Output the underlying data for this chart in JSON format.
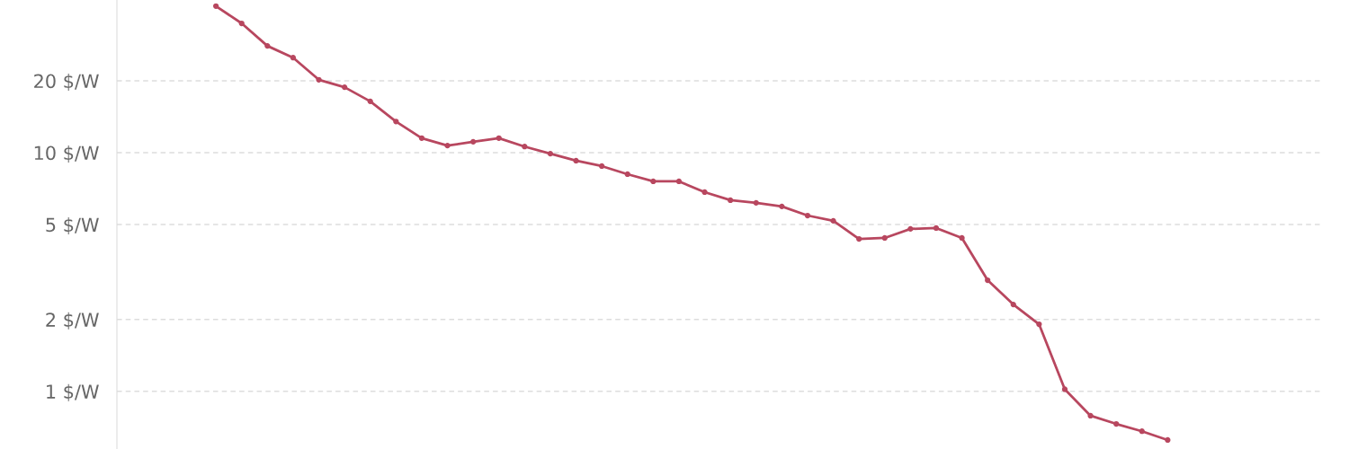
{
  "chart_data": {
    "type": "line",
    "categories": [
      null,
      null,
      null,
      null,
      null,
      null,
      null,
      null,
      null,
      null,
      null,
      null,
      null,
      null,
      null,
      null,
      null,
      null,
      null,
      null,
      null,
      null,
      null,
      null,
      null,
      null,
      null,
      null,
      null,
      null,
      null,
      null,
      null,
      null,
      null,
      null,
      null,
      null
    ],
    "series": [
      {
        "color": "#b8475f",
        "values": [
          41.1,
          34.8,
          28.0,
          25.0,
          20.2,
          18.8,
          16.4,
          13.5,
          11.5,
          10.7,
          11.1,
          11.5,
          10.6,
          9.9,
          9.25,
          8.78,
          8.12,
          7.58,
          7.58,
          6.83,
          6.32,
          6.16,
          5.95,
          5.45,
          5.18,
          4.35,
          4.39,
          4.79,
          4.83,
          4.39,
          2.92,
          2.31,
          1.91,
          1.02,
          0.79,
          0.73,
          0.68,
          0.625
        ]
      }
    ],
    "log": "y",
    "ylim": [
      0.573,
      43.6
    ],
    "yticks": [
      {
        "value": 1,
        "label": "1 $/W"
      },
      {
        "value": 2,
        "label": "2 $/W"
      },
      {
        "value": 5,
        "label": "5 $/W"
      },
      {
        "value": 10,
        "label": "10 $/W"
      },
      {
        "value": 20,
        "label": "20 $/W"
      }
    ],
    "tick_labels": "y",
    "grid": "y",
    "marker": "circle",
    "line_style": "solid"
  }
}
